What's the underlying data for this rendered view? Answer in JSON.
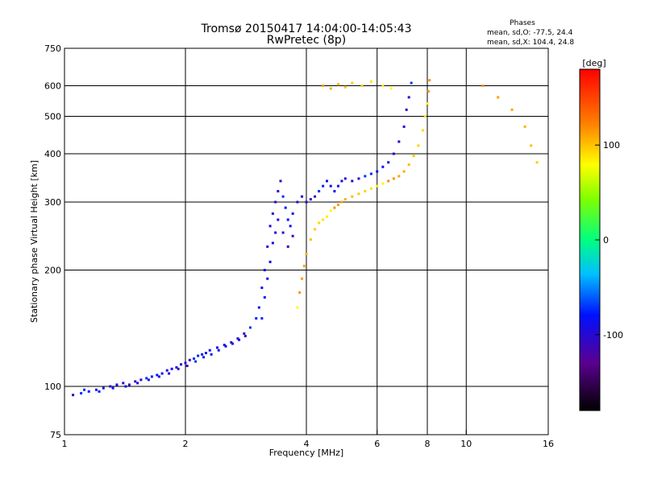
{
  "chart_data": {
    "type": "scatter",
    "title": "Tromsø 20150417 14:04:00-14:05:43",
    "subtitle": "RwPretec (8p)",
    "xlabel": "Frequency [MHz]",
    "ylabel": "Stationary phase Virtual Height [km]",
    "x_scale": "log",
    "y_scale": "log",
    "xlim": [
      1,
      16
    ],
    "ylim": [
      75,
      750
    ],
    "x_ticks": [
      1,
      2,
      4,
      6,
      8,
      10,
      16
    ],
    "y_ticks": [
      75,
      100,
      200,
      300,
      400,
      500,
      600,
      750
    ],
    "x_grid": [
      2,
      4,
      6,
      8,
      10
    ],
    "y_grid": [
      100,
      200,
      300,
      400,
      500,
      600
    ],
    "grid": true,
    "legend": {
      "title": "Phases",
      "lines": [
        "mean, sd,O: -77.5, 24.4",
        "mean, sd,X: 104.4, 24.8"
      ]
    },
    "colorbar": {
      "label": "[deg]",
      "range": [
        -180,
        180
      ],
      "ticks": [
        100,
        0,
        -100
      ]
    },
    "series": [
      {
        "mode": "O",
        "color_value": -90,
        "points": [
          [
            1.05,
            95
          ],
          [
            1.1,
            96
          ],
          [
            1.15,
            97
          ],
          [
            1.2,
            98
          ],
          [
            1.25,
            99
          ],
          [
            1.3,
            100
          ],
          [
            1.35,
            101
          ],
          [
            1.4,
            102
          ],
          [
            1.45,
            101
          ],
          [
            1.5,
            103
          ],
          [
            1.55,
            104
          ],
          [
            1.6,
            105
          ],
          [
            1.65,
            106
          ],
          [
            1.7,
            107
          ],
          [
            1.75,
            108
          ],
          [
            1.8,
            110
          ],
          [
            1.85,
            111
          ],
          [
            1.9,
            112
          ],
          [
            1.95,
            114
          ],
          [
            2.0,
            115
          ],
          [
            2.05,
            117
          ],
          [
            2.1,
            118
          ],
          [
            2.15,
            120
          ],
          [
            2.2,
            121
          ],
          [
            2.25,
            122
          ],
          [
            2.3,
            124
          ],
          [
            2.4,
            126
          ],
          [
            2.5,
            128
          ],
          [
            2.6,
            130
          ],
          [
            2.7,
            133
          ],
          [
            2.8,
            137
          ],
          [
            2.9,
            142
          ],
          [
            3.0,
            150
          ],
          [
            3.05,
            160
          ],
          [
            3.1,
            180
          ],
          [
            3.15,
            200
          ],
          [
            3.2,
            230
          ],
          [
            3.25,
            260
          ],
          [
            3.3,
            280
          ],
          [
            3.35,
            300
          ],
          [
            3.4,
            320
          ],
          [
            3.45,
            340
          ],
          [
            3.5,
            310
          ],
          [
            3.55,
            290
          ],
          [
            3.6,
            270
          ],
          [
            3.65,
            260
          ],
          [
            3.7,
            280
          ],
          [
            3.8,
            300
          ],
          [
            3.9,
            310
          ],
          [
            4.0,
            300
          ],
          [
            4.1,
            305
          ],
          [
            4.2,
            310
          ],
          [
            4.3,
            320
          ],
          [
            4.4,
            330
          ],
          [
            4.5,
            340
          ],
          [
            4.6,
            330
          ],
          [
            4.7,
            320
          ],
          [
            4.8,
            330
          ],
          [
            4.9,
            340
          ],
          [
            5.0,
            345
          ],
          [
            5.2,
            340
          ],
          [
            5.4,
            345
          ],
          [
            5.6,
            350
          ],
          [
            5.8,
            355
          ],
          [
            6.0,
            360
          ],
          [
            6.2,
            370
          ],
          [
            6.4,
            380
          ],
          [
            6.6,
            400
          ],
          [
            6.8,
            430
          ],
          [
            7.0,
            470
          ],
          [
            7.1,
            520
          ],
          [
            7.2,
            560
          ],
          [
            7.3,
            610
          ],
          [
            3.1,
            150
          ],
          [
            3.15,
            170
          ],
          [
            3.2,
            190
          ],
          [
            3.25,
            210
          ],
          [
            3.3,
            235
          ],
          [
            3.35,
            250
          ],
          [
            3.4,
            270
          ],
          [
            3.5,
            250
          ],
          [
            3.6,
            230
          ],
          [
            3.7,
            245
          ],
          [
            1.12,
            98
          ],
          [
            1.22,
            97
          ],
          [
            1.32,
            99
          ],
          [
            1.42,
            100
          ],
          [
            1.52,
            102
          ],
          [
            1.62,
            104
          ],
          [
            1.72,
            106
          ],
          [
            1.82,
            108
          ],
          [
            1.92,
            111
          ],
          [
            2.02,
            113
          ],
          [
            2.12,
            116
          ],
          [
            2.22,
            119
          ],
          [
            2.32,
            121
          ],
          [
            2.42,
            124
          ],
          [
            2.52,
            127
          ],
          [
            2.62,
            129
          ],
          [
            2.72,
            132
          ],
          [
            2.82,
            135
          ]
        ]
      },
      {
        "mode": "X",
        "color_value": 100,
        "points": [
          [
            3.8,
            160
          ],
          [
            3.85,
            175
          ],
          [
            3.9,
            190
          ],
          [
            3.95,
            205
          ],
          [
            4.0,
            220
          ],
          [
            4.1,
            240
          ],
          [
            4.2,
            255
          ],
          [
            4.3,
            265
          ],
          [
            4.4,
            270
          ],
          [
            4.5,
            275
          ],
          [
            4.6,
            285
          ],
          [
            4.7,
            290
          ],
          [
            4.8,
            295
          ],
          [
            4.9,
            300
          ],
          [
            5.0,
            305
          ],
          [
            5.2,
            310
          ],
          [
            5.4,
            315
          ],
          [
            5.6,
            320
          ],
          [
            5.8,
            325
          ],
          [
            6.0,
            330
          ],
          [
            6.2,
            335
          ],
          [
            6.4,
            340
          ],
          [
            6.6,
            345
          ],
          [
            6.8,
            350
          ],
          [
            7.0,
            360
          ],
          [
            7.2,
            375
          ],
          [
            7.4,
            395
          ],
          [
            7.6,
            420
          ],
          [
            7.8,
            460
          ],
          [
            7.9,
            500
          ],
          [
            8.0,
            540
          ],
          [
            8.05,
            580
          ],
          [
            8.1,
            620
          ],
          [
            4.4,
            600
          ],
          [
            4.6,
            590
          ],
          [
            4.8,
            605
          ],
          [
            5.0,
            595
          ],
          [
            5.2,
            610
          ],
          [
            5.5,
            600
          ],
          [
            5.8,
            615
          ],
          [
            6.2,
            600
          ],
          [
            6.5,
            590
          ],
          [
            11,
            600
          ],
          [
            12,
            560
          ],
          [
            13,
            520
          ],
          [
            14,
            470
          ],
          [
            14.5,
            420
          ],
          [
            15,
            380
          ]
        ]
      }
    ]
  }
}
